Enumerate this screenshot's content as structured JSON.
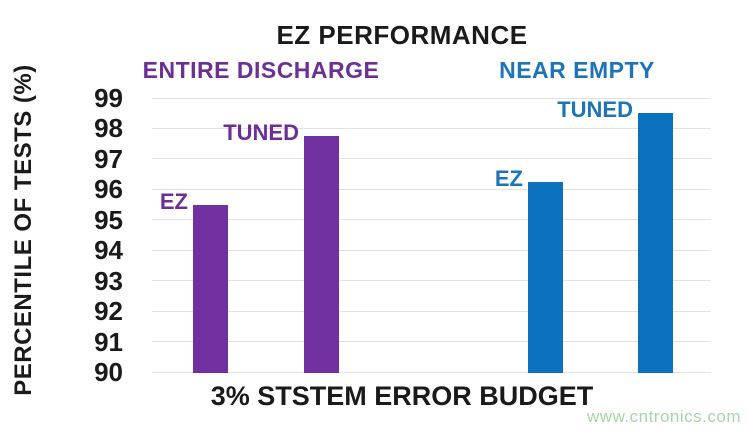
{
  "chart_data": {
    "type": "bar",
    "title": "EZ PERFORMANCE",
    "xlabel": "3% STSTEM ERROR BUDGET",
    "ylabel": "PERCENTILE OF TESTS (%)",
    "ylim": [
      90,
      99
    ],
    "yticks": [
      99,
      98,
      97,
      96,
      95,
      94,
      93,
      92,
      91,
      90
    ],
    "grid": "horizontal",
    "legend_position": "none",
    "groups": [
      {
        "label": "ENTIRE DISCHARGE",
        "bar_color": "#7030a0",
        "text_color": "#6b2f95",
        "bars": [
          {
            "label": "EZ",
            "value": 95.5
          },
          {
            "label": "TUNED",
            "value": 97.75
          }
        ]
      },
      {
        "label": "NEAR EMPTY",
        "bar_color": "#0b72c0",
        "text_color": "#1e74b8",
        "bars": [
          {
            "label": "EZ",
            "value": 96.25
          },
          {
            "label": "TUNED",
            "value": 98.5
          }
        ]
      }
    ]
  },
  "watermark": "www.cntronics.com"
}
